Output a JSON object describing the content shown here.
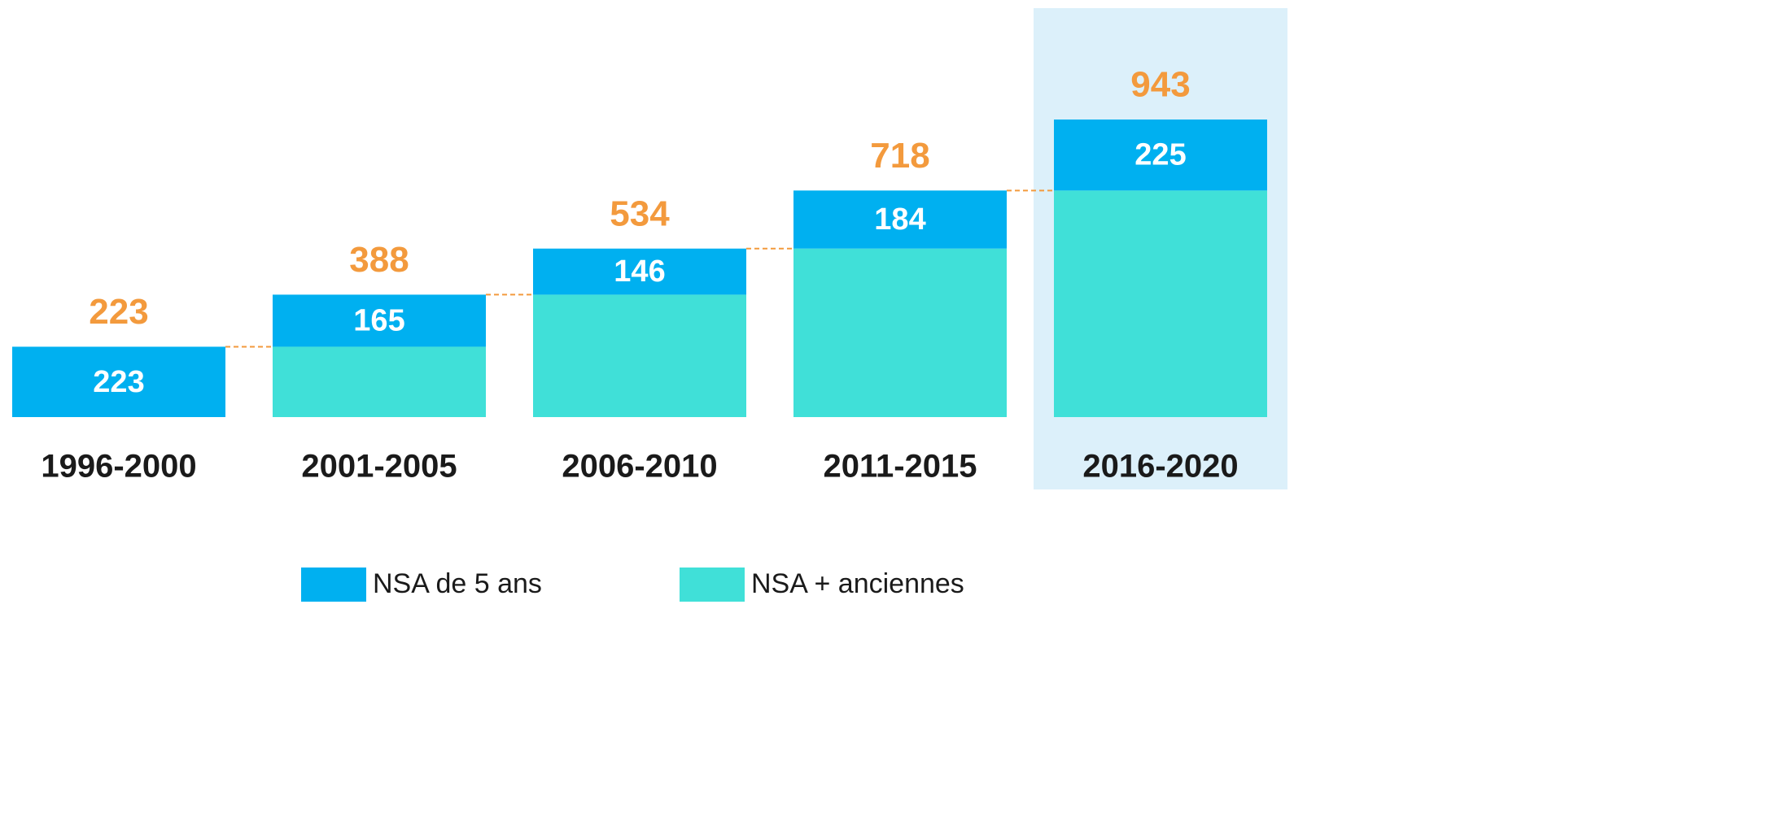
{
  "chart_data": {
    "type": "stacked_bar",
    "categories": [
      "1996-2000",
      "2001-2005",
      "2006-2010",
      "2011-2015",
      "2016-2020"
    ],
    "series": [
      {
        "name": "NSA de 5 ans",
        "color": "#00b0f0",
        "values": [
          223,
          165,
          146,
          184,
          225
        ]
      },
      {
        "name": "NSA + anciennes",
        "color": "#40e0d8",
        "values": [
          0,
          223,
          388,
          534,
          718
        ]
      }
    ],
    "totals": [
      223,
      388,
      534,
      718,
      943
    ],
    "totals_color": "#f39a3d",
    "highlight": 4,
    "highlight_color": "#dcf0fa"
  }
}
